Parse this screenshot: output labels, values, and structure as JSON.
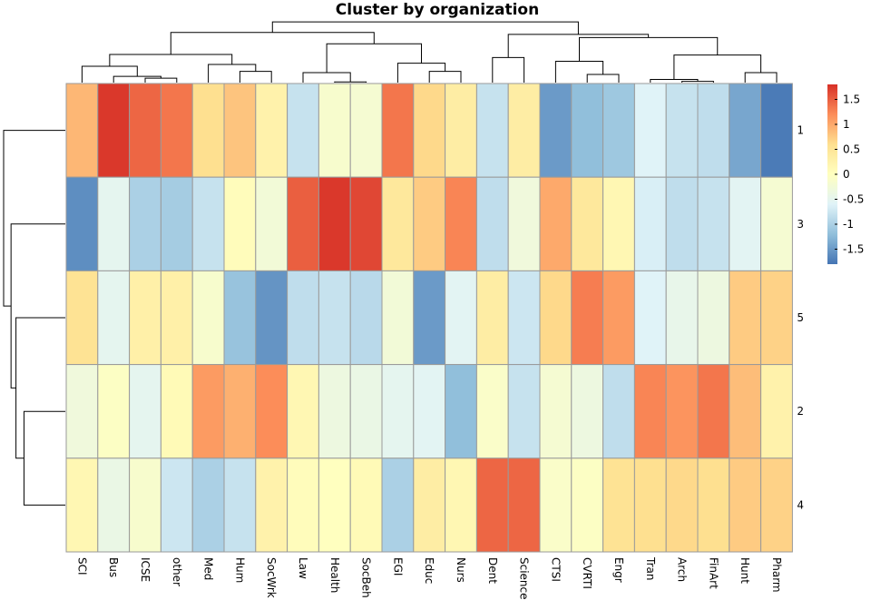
{
  "chart_data": {
    "type": "heatmap",
    "title": "Cluster by organization",
    "columns": [
      "SCI",
      "Bus",
      "ICSE",
      "other",
      "Med",
      "Hum",
      "SocWrk",
      "Law",
      "Health",
      "SocBeh",
      "EGI",
      "Educ",
      "Nurs",
      "Dent",
      "Science",
      "CTSI",
      "CVRTI",
      "Engr",
      "Tran",
      "Arch",
      "FinArt",
      "Hunt",
      "Pharm"
    ],
    "rows": [
      "1",
      "3",
      "5",
      "2",
      "4"
    ],
    "values": [
      [
        0.9,
        1.75,
        1.45,
        1.35,
        0.6,
        0.8,
        0.25,
        -0.8,
        -0.15,
        -0.2,
        1.35,
        0.65,
        0.35,
        -0.8,
        0.35,
        -1.5,
        -1.2,
        -1.1,
        -0.6,
        -0.8,
        -0.85,
        -1.4,
        -1.75
      ],
      [
        -1.6,
        -0.5,
        -1.0,
        -1.05,
        -0.8,
        0.05,
        -0.25,
        1.5,
        1.75,
        1.65,
        0.45,
        0.75,
        1.25,
        -0.85,
        -0.3,
        1.0,
        0.45,
        0.15,
        -0.65,
        -0.85,
        -0.8,
        -0.55,
        -0.2
      ],
      [
        0.55,
        -0.5,
        0.3,
        0.3,
        -0.15,
        -1.15,
        -1.55,
        -0.85,
        -0.8,
        -0.9,
        -0.25,
        -1.5,
        -0.55,
        0.35,
        -0.75,
        0.65,
        1.3,
        1.1,
        -0.6,
        -0.45,
        -0.35,
        0.75,
        0.7
      ],
      [
        -0.3,
        -0.05,
        -0.5,
        0.1,
        1.1,
        0.95,
        1.2,
        0.15,
        -0.35,
        -0.4,
        -0.5,
        -0.55,
        -1.2,
        -0.1,
        -0.8,
        -0.2,
        -0.35,
        -0.85,
        1.25,
        1.15,
        1.35,
        0.85,
        0.25
      ],
      [
        0.15,
        -0.4,
        -0.15,
        -0.75,
        -1.0,
        -0.8,
        0.25,
        0.05,
        0.0,
        0.1,
        -1.0,
        0.35,
        0.15,
        1.45,
        1.45,
        -0.1,
        -0.05,
        0.55,
        0.6,
        0.65,
        0.6,
        0.75,
        0.7
      ]
    ],
    "legend": {
      "ticks": [
        "1.5",
        "1",
        "0.5",
        "0",
        "-0.5",
        "-1",
        "-1.5"
      ],
      "min": -1.8,
      "max": 1.8,
      "colors": [
        "#4575B4",
        "#91BFDB",
        "#E0F3F8",
        "#FFFFBF",
        "#FEE090",
        "#FC8D59",
        "#D73027"
      ]
    },
    "col_dendrogram": [
      [
        3,
        7,
        5,
        4
      ],
      [
        10,
        11,
        7,
        4
      ],
      [
        0,
        7,
        9,
        2
      ],
      [
        3,
        13,
        7,
        1
      ],
      [
        5,
        2,
        23,
        4
      ],
      [
        3,
        6,
        19,
        2
      ],
      [
        22,
        21,
        4,
        3
      ],
      [
        8,
        9,
        2,
        1
      ],
      [
        14,
        15,
        5,
        3
      ],
      [
        26,
        29,
        28,
        2
      ],
      [
        27,
        28,
        4,
        2
      ],
      [
        20,
        24,
        13,
        9
      ],
      [
        1,
        24,
        32,
        26
      ],
      [
        16,
        17,
        33,
        31
      ],
      [
        12,
        18,
        38,
        29
      ],
      [
        23,
        25,
        42,
        30
      ],
      [
        31,
        36,
        44,
        33
      ],
      [
        35,
        45,
        43,
        37
      ],
      [
        39,
        41,
        40,
        41
      ],
      [
        46,
        50,
        47,
        43
      ],
      [
        43,
        34,
        51,
        51
      ],
      [
        48,
        68,
        64,
        49
      ],
      [
        50,
        62,
        71,
        70
      ]
    ],
    "row_dendrogram": [
      [
        0,
        1,
        27
      ],
      [
        4,
        3,
        21
      ],
      [
        5,
        2,
        12
      ],
      [
        6,
        7,
        6
      ]
    ]
  }
}
